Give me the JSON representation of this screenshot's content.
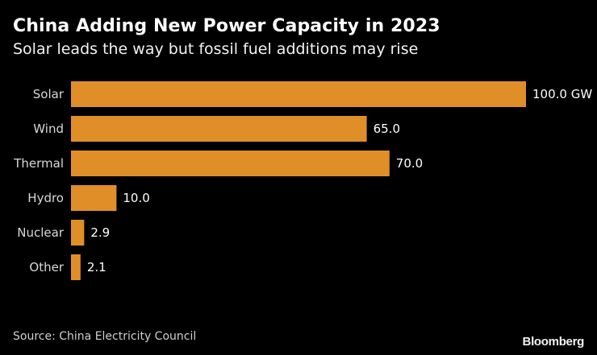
{
  "chart_data": {
    "type": "bar",
    "orientation": "horizontal",
    "title": "China Adding New Power Capacity in 2023",
    "subtitle": "Solar leads the way but fossil fuel additions may rise",
    "categories": [
      "Solar",
      "Wind",
      "Thermal",
      "Hydro",
      "Nuclear",
      "Other"
    ],
    "values": [
      100.0,
      65.0,
      70.0,
      10.0,
      2.9,
      2.1
    ],
    "value_labels": [
      "100.0 GW",
      "65.0",
      "70.0",
      "10.0",
      "2.9",
      "2.1"
    ],
    "unit": "GW",
    "xlim": [
      0,
      100
    ],
    "xlabel": "",
    "ylabel": "",
    "bar_color": "#e08e28",
    "source": "Source: China Electricity Council",
    "brand": "Bloomberg"
  }
}
